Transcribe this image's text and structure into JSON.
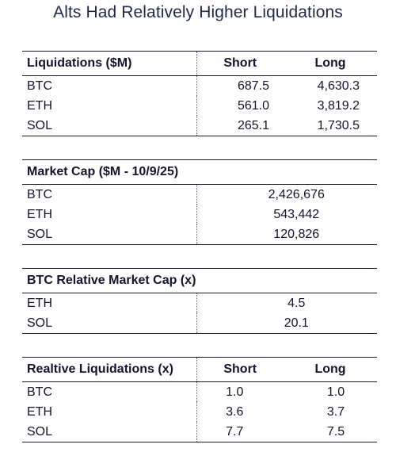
{
  "title": "Alts Had Relatively Higher Liquidations",
  "liquidations": {
    "header": {
      "label": "Liquidations ($M)",
      "short": "Short",
      "long": "Long"
    },
    "rows": [
      {
        "asset": "BTC",
        "short": "687.5",
        "long": "4,630.3"
      },
      {
        "asset": "ETH",
        "short": "561.0",
        "long": "3,819.2"
      },
      {
        "asset": "SOL",
        "short": "265.1",
        "long": "1,730.5"
      }
    ]
  },
  "market_cap": {
    "header": {
      "label": "Market Cap ($M - 10/9/25)"
    },
    "rows": [
      {
        "asset": "BTC",
        "value": "2,426,676"
      },
      {
        "asset": "ETH",
        "value": "543,442"
      },
      {
        "asset": "SOL",
        "value": "120,826"
      }
    ]
  },
  "relative_market_cap": {
    "header": {
      "label": "BTC Relative Market Cap (x)"
    },
    "rows": [
      {
        "asset": "ETH",
        "value": "4.5"
      },
      {
        "asset": "SOL",
        "value": "20.1"
      }
    ]
  },
  "relative_liquidations": {
    "header": {
      "label": "Realtive Liquidations (x)",
      "short": "Short",
      "long": "Long"
    },
    "rows": [
      {
        "asset": "BTC",
        "short": "1.0",
        "long": "1.0"
      },
      {
        "asset": "ETH",
        "short": "3.6",
        "long": "3.7"
      },
      {
        "asset": "SOL",
        "short": "7.7",
        "long": "7.5"
      }
    ]
  }
}
